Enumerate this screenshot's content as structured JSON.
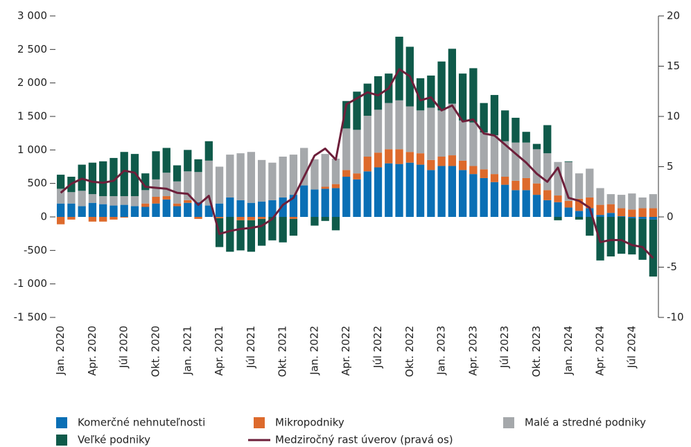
{
  "chart_data": {
    "type": "bar",
    "categories": [
      "Jan. 2020",
      null,
      null,
      "Apr. 2020",
      null,
      null,
      "Júl 2020",
      null,
      null,
      "Okt. 2020",
      null,
      null,
      "Jan. 2021",
      null,
      null,
      "Apr. 2021",
      null,
      null,
      "Júl 2021",
      null,
      null,
      "Okt. 2021",
      null,
      null,
      "Jan. 2022",
      null,
      null,
      "Apr. 2022",
      null,
      null,
      "Júl 2022",
      null,
      null,
      "Okt. 2022",
      null,
      null,
      "Jan. 2023",
      null,
      null,
      "Apr. 2023",
      null,
      null,
      "Júl 2023",
      null,
      null,
      "Okt. 2023",
      null,
      null,
      "Jan. 2024",
      null,
      null,
      "Apr. 2024",
      null,
      null,
      "Júl 2024",
      null,
      null
    ],
    "series": [
      {
        "name": "Komerčné nehnuteľnosti",
        "type": "bar",
        "color": "#0a6fb5",
        "values": [
          200,
          200,
          160,
          210,
          190,
          170,
          180,
          160,
          150,
          200,
          260,
          160,
          210,
          220,
          170,
          200,
          290,
          250,
          210,
          230,
          250,
          290,
          330,
          470,
          410,
          420,
          430,
          600,
          560,
          680,
          740,
          800,
          790,
          810,
          780,
          700,
          760,
          760,
          700,
          640,
          580,
          520,
          480,
          400,
          400,
          330,
          250,
          220,
          140,
          90,
          130,
          30,
          60,
          10,
          -20,
          -30,
          -40
        ]
      },
      {
        "name": "Mikropodniky",
        "type": "bar",
        "color": "#dd6a2c",
        "values": [
          -110,
          -40,
          0,
          -70,
          -70,
          -40,
          -10,
          0,
          50,
          100,
          50,
          40,
          40,
          -30,
          0,
          -20,
          0,
          -50,
          -50,
          -30,
          0,
          0,
          -30,
          0,
          0,
          30,
          60,
          100,
          90,
          220,
          220,
          210,
          220,
          160,
          170,
          150,
          140,
          160,
          140,
          120,
          130,
          120,
          120,
          140,
          180,
          170,
          150,
          100,
          100,
          180,
          160,
          150,
          130,
          120,
          110,
          130,
          130
        ]
      },
      {
        "name": "Malé a stredné podniky",
        "type": "bar",
        "color": "#a5a8ab",
        "values": [
          220,
          170,
          230,
          130,
          120,
          140,
          130,
          150,
          200,
          260,
          350,
          330,
          430,
          450,
          670,
          550,
          640,
          700,
          760,
          620,
          560,
          610,
          600,
          560,
          450,
          490,
          380,
          620,
          650,
          610,
          640,
          690,
          730,
          680,
          640,
          780,
          690,
          770,
          600,
          650,
          550,
          580,
          530,
          570,
          530,
          510,
          550,
          500,
          580,
          380,
          430,
          250,
          150,
          200,
          240,
          160,
          210
        ]
      },
      {
        "name": "Veľké podniky",
        "type": "bar",
        "color": "#0f5a4a",
        "values": [
          210,
          230,
          390,
          470,
          520,
          570,
          660,
          630,
          250,
          420,
          370,
          240,
          320,
          190,
          290,
          -430,
          -520,
          -450,
          -470,
          -400,
          -350,
          -380,
          -250,
          0,
          -130,
          -60,
          -200,
          410,
          570,
          480,
          500,
          440,
          950,
          890,
          480,
          480,
          730,
          820,
          700,
          810,
          440,
          600,
          460,
          370,
          160,
          80,
          420,
          -50,
          10,
          -40,
          -280,
          -650,
          -590,
          -550,
          -540,
          -610,
          -850
        ]
      },
      {
        "name": "Medziročný rast úverov (pravá os)",
        "type": "line",
        "axis": "y2",
        "color": "#6d1f3a",
        "values": [
          2.4,
          3.3,
          3.8,
          3.5,
          3.4,
          3.6,
          4.6,
          4.4,
          3.0,
          2.9,
          2.8,
          2.4,
          2.3,
          1.2,
          2.1,
          -1.7,
          -1.4,
          -1.2,
          -1.1,
          -0.9,
          -0.2,
          1.2,
          1.9,
          4.0,
          6.1,
          6.8,
          5.7,
          11.2,
          11.8,
          12.4,
          12.1,
          12.8,
          14.7,
          14.0,
          11.6,
          11.9,
          10.6,
          11.1,
          9.5,
          9.7,
          8.3,
          8.1,
          7.2,
          6.3,
          5.4,
          4.3,
          3.5,
          4.9,
          1.9,
          1.6,
          0.9,
          -2.5,
          -2.3,
          -2.3,
          -2.8,
          -3.0,
          -4.1
        ]
      }
    ],
    "ylim": [
      -1500,
      3000
    ],
    "yticks": [
      {
        "value": -1500,
        "label": "-1 500"
      },
      {
        "value": -1000,
        "label": "-1 000"
      },
      -500,
      0,
      500,
      {
        "value": 1000,
        "label": "1 000"
      },
      {
        "value": 1500,
        "label": "1 500"
      },
      {
        "value": 2000,
        "label": "2 000"
      },
      {
        "value": 2500,
        "label": "2 500"
      },
      {
        "value": 3000,
        "label": "3 000"
      }
    ],
    "y2lim": [
      -10,
      20
    ],
    "y2ticks": [
      -10,
      -5,
      0,
      5,
      10,
      15,
      20
    ]
  }
}
